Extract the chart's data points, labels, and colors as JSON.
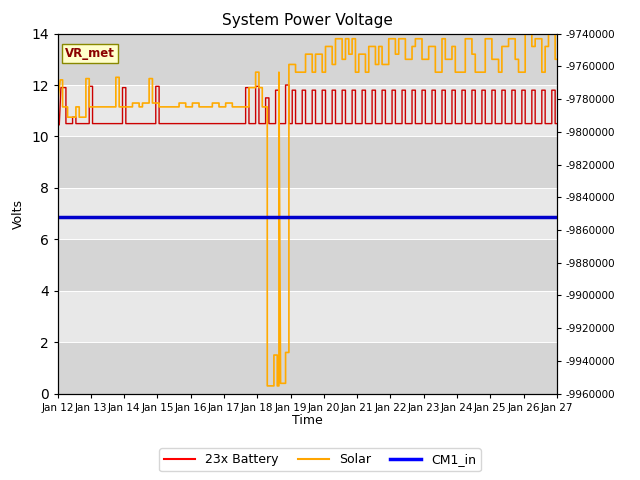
{
  "title": "System Power Voltage",
  "xlabel": "Time",
  "ylabel": "Volts",
  "ylim_left": [
    0,
    14
  ],
  "ylim_right": [
    -9960000,
    -9740000
  ],
  "right_yticks": [
    -9740000,
    -9760000,
    -9780000,
    -9800000,
    -9820000,
    -9840000,
    -9860000,
    -9880000,
    -9900000,
    -9920000,
    -9940000,
    -9960000
  ],
  "bg_color": "#e8e8e8",
  "band_color": "#d0d0d0",
  "annotation_text": "VR_met",
  "legend_labels": [
    "23x Battery",
    "Solar",
    "CM1_in"
  ],
  "legend_colors": [
    "red",
    "orange",
    "blue"
  ],
  "cm1_value": 6.85,
  "battery_color": "#cc0000",
  "solar_color": "#ffaa00",
  "cm1_color": "#0000cc",
  "battery_data": [
    [
      0.0,
      10.45
    ],
    [
      0.05,
      10.45
    ],
    [
      0.1,
      11.9
    ],
    [
      0.25,
      11.9
    ],
    [
      0.25,
      10.5
    ],
    [
      0.45,
      10.5
    ],
    [
      0.45,
      10.75
    ],
    [
      0.55,
      10.75
    ],
    [
      0.55,
      10.5
    ],
    [
      0.85,
      10.5
    ],
    [
      0.85,
      10.5
    ],
    [
      0.95,
      10.5
    ],
    [
      0.95,
      11.95
    ],
    [
      1.05,
      11.95
    ],
    [
      1.05,
      10.5
    ],
    [
      1.15,
      10.5
    ],
    [
      1.15,
      10.5
    ],
    [
      1.35,
      10.5
    ],
    [
      1.35,
      10.5
    ],
    [
      1.55,
      10.5
    ],
    [
      1.55,
      10.5
    ],
    [
      1.75,
      10.5
    ],
    [
      1.75,
      10.5
    ],
    [
      1.95,
      10.5
    ],
    [
      1.95,
      11.9
    ],
    [
      2.05,
      11.9
    ],
    [
      2.05,
      10.5
    ],
    [
      2.25,
      10.5
    ],
    [
      2.25,
      10.5
    ],
    [
      2.45,
      10.5
    ],
    [
      2.45,
      10.5
    ],
    [
      2.55,
      10.5
    ],
    [
      2.55,
      10.5
    ],
    [
      2.85,
      10.5
    ],
    [
      2.85,
      10.5
    ],
    [
      2.95,
      10.5
    ],
    [
      2.95,
      11.95
    ],
    [
      3.05,
      11.95
    ],
    [
      3.05,
      10.5
    ],
    [
      3.25,
      10.5
    ],
    [
      3.25,
      10.5
    ],
    [
      3.45,
      10.5
    ],
    [
      3.45,
      10.5
    ],
    [
      3.65,
      10.5
    ],
    [
      3.65,
      10.5
    ],
    [
      3.85,
      10.5
    ],
    [
      3.85,
      10.5
    ],
    [
      4.05,
      10.5
    ],
    [
      4.05,
      10.5
    ],
    [
      4.25,
      10.5
    ],
    [
      4.25,
      10.5
    ],
    [
      4.45,
      10.5
    ],
    [
      4.45,
      10.5
    ],
    [
      4.65,
      10.5
    ],
    [
      4.65,
      10.5
    ],
    [
      4.85,
      10.5
    ],
    [
      4.85,
      10.5
    ],
    [
      5.05,
      10.5
    ],
    [
      5.05,
      10.5
    ],
    [
      5.25,
      10.5
    ],
    [
      5.25,
      10.5
    ],
    [
      5.45,
      10.5
    ],
    [
      5.45,
      10.5
    ],
    [
      5.65,
      10.5
    ],
    [
      5.65,
      11.9
    ],
    [
      5.75,
      11.9
    ],
    [
      5.75,
      10.5
    ],
    [
      5.85,
      10.5
    ],
    [
      5.85,
      10.5
    ],
    [
      5.95,
      10.5
    ],
    [
      5.95,
      11.95
    ],
    [
      6.05,
      11.95
    ],
    [
      6.05,
      10.5
    ],
    [
      6.25,
      10.5
    ],
    [
      6.25,
      11.5
    ],
    [
      6.35,
      11.5
    ],
    [
      6.35,
      10.5
    ],
    [
      6.55,
      10.5
    ],
    [
      6.55,
      11.8
    ],
    [
      6.65,
      11.8
    ],
    [
      6.65,
      10.5
    ],
    [
      6.85,
      10.5
    ],
    [
      6.85,
      12.0
    ],
    [
      6.95,
      12.0
    ],
    [
      6.95,
      10.5
    ],
    [
      7.05,
      10.5
    ],
    [
      7.05,
      11.8
    ],
    [
      7.15,
      11.8
    ],
    [
      7.15,
      10.5
    ],
    [
      7.35,
      10.5
    ],
    [
      7.35,
      11.8
    ],
    [
      7.45,
      11.8
    ],
    [
      7.45,
      10.5
    ],
    [
      7.65,
      10.5
    ],
    [
      7.65,
      11.8
    ],
    [
      7.75,
      11.8
    ],
    [
      7.75,
      10.5
    ],
    [
      7.95,
      10.5
    ],
    [
      7.95,
      11.8
    ],
    [
      8.05,
      11.8
    ],
    [
      8.05,
      10.5
    ],
    [
      8.25,
      10.5
    ],
    [
      8.25,
      11.8
    ],
    [
      8.35,
      11.8
    ],
    [
      8.35,
      10.5
    ],
    [
      8.55,
      10.5
    ],
    [
      8.55,
      11.8
    ],
    [
      8.65,
      11.8
    ],
    [
      8.65,
      10.5
    ],
    [
      8.85,
      10.5
    ],
    [
      8.85,
      11.8
    ],
    [
      8.95,
      11.8
    ],
    [
      8.95,
      10.5
    ],
    [
      9.15,
      10.5
    ],
    [
      9.15,
      11.8
    ],
    [
      9.25,
      11.8
    ],
    [
      9.25,
      10.5
    ],
    [
      9.45,
      10.5
    ],
    [
      9.45,
      11.8
    ],
    [
      9.55,
      11.8
    ],
    [
      9.55,
      10.5
    ],
    [
      9.75,
      10.5
    ],
    [
      9.75,
      11.8
    ],
    [
      9.85,
      11.8
    ],
    [
      9.85,
      10.5
    ],
    [
      10.05,
      10.5
    ],
    [
      10.05,
      11.8
    ],
    [
      10.15,
      11.8
    ],
    [
      10.15,
      10.5
    ],
    [
      10.35,
      10.5
    ],
    [
      10.35,
      11.8
    ],
    [
      10.45,
      11.8
    ],
    [
      10.45,
      10.5
    ],
    [
      10.65,
      10.5
    ],
    [
      10.65,
      11.8
    ],
    [
      10.75,
      11.8
    ],
    [
      10.75,
      10.5
    ],
    [
      10.95,
      10.5
    ],
    [
      10.95,
      11.8
    ],
    [
      11.05,
      11.8
    ],
    [
      11.05,
      10.5
    ],
    [
      11.25,
      10.5
    ],
    [
      11.25,
      11.8
    ],
    [
      11.35,
      11.8
    ],
    [
      11.35,
      10.5
    ],
    [
      11.55,
      10.5
    ],
    [
      11.55,
      11.8
    ],
    [
      11.65,
      11.8
    ],
    [
      11.65,
      10.5
    ],
    [
      11.85,
      10.5
    ],
    [
      11.85,
      11.8
    ],
    [
      11.95,
      11.8
    ],
    [
      11.95,
      10.5
    ],
    [
      12.15,
      10.5
    ],
    [
      12.15,
      11.8
    ],
    [
      12.25,
      11.8
    ],
    [
      12.25,
      10.5
    ],
    [
      12.45,
      10.5
    ],
    [
      12.45,
      11.8
    ],
    [
      12.55,
      11.8
    ],
    [
      12.55,
      10.5
    ],
    [
      12.75,
      10.5
    ],
    [
      12.75,
      11.8
    ],
    [
      12.85,
      11.8
    ],
    [
      12.85,
      10.5
    ],
    [
      13.05,
      10.5
    ],
    [
      13.05,
      11.8
    ],
    [
      13.15,
      11.8
    ],
    [
      13.15,
      10.5
    ],
    [
      13.35,
      10.5
    ],
    [
      13.35,
      11.8
    ],
    [
      13.45,
      11.8
    ],
    [
      13.45,
      10.5
    ],
    [
      13.65,
      10.5
    ],
    [
      13.65,
      11.8
    ],
    [
      13.75,
      11.8
    ],
    [
      13.75,
      10.5
    ],
    [
      13.95,
      10.5
    ],
    [
      13.95,
      11.8
    ],
    [
      14.05,
      11.8
    ],
    [
      14.05,
      10.5
    ],
    [
      14.25,
      10.5
    ],
    [
      14.25,
      11.8
    ],
    [
      14.35,
      11.8
    ],
    [
      14.35,
      10.5
    ],
    [
      14.55,
      10.5
    ],
    [
      14.55,
      11.8
    ],
    [
      14.65,
      11.8
    ],
    [
      14.65,
      10.5
    ],
    [
      14.85,
      10.5
    ],
    [
      14.85,
      11.8
    ],
    [
      14.95,
      11.8
    ],
    [
      14.95,
      10.5
    ],
    [
      15.0,
      10.5
    ]
  ],
  "solar_data": [
    [
      0.0,
      11.3
    ],
    [
      0.08,
      12.2
    ],
    [
      0.15,
      12.2
    ],
    [
      0.15,
      11.15
    ],
    [
      0.3,
      11.15
    ],
    [
      0.3,
      10.75
    ],
    [
      0.55,
      10.75
    ],
    [
      0.55,
      11.15
    ],
    [
      0.65,
      11.15
    ],
    [
      0.65,
      10.75
    ],
    [
      0.85,
      10.75
    ],
    [
      0.85,
      12.25
    ],
    [
      0.95,
      12.25
    ],
    [
      0.95,
      11.15
    ],
    [
      1.15,
      11.15
    ],
    [
      1.15,
      11.15
    ],
    [
      1.35,
      11.15
    ],
    [
      1.35,
      11.15
    ],
    [
      1.55,
      11.15
    ],
    [
      1.55,
      11.15
    ],
    [
      1.75,
      11.15
    ],
    [
      1.75,
      12.3
    ],
    [
      1.85,
      12.3
    ],
    [
      1.85,
      11.15
    ],
    [
      2.05,
      11.15
    ],
    [
      2.05,
      11.15
    ],
    [
      2.25,
      11.15
    ],
    [
      2.25,
      11.3
    ],
    [
      2.45,
      11.3
    ],
    [
      2.45,
      11.15
    ],
    [
      2.55,
      11.15
    ],
    [
      2.55,
      11.3
    ],
    [
      2.75,
      11.3
    ],
    [
      2.75,
      12.25
    ],
    [
      2.85,
      12.25
    ],
    [
      2.85,
      11.3
    ],
    [
      3.05,
      11.3
    ],
    [
      3.05,
      11.15
    ],
    [
      3.25,
      11.15
    ],
    [
      3.25,
      11.15
    ],
    [
      3.45,
      11.15
    ],
    [
      3.45,
      11.15
    ],
    [
      3.65,
      11.15
    ],
    [
      3.65,
      11.3
    ],
    [
      3.85,
      11.3
    ],
    [
      3.85,
      11.15
    ],
    [
      4.05,
      11.15
    ],
    [
      4.05,
      11.3
    ],
    [
      4.25,
      11.3
    ],
    [
      4.25,
      11.15
    ],
    [
      4.45,
      11.15
    ],
    [
      4.45,
      11.15
    ],
    [
      4.65,
      11.15
    ],
    [
      4.65,
      11.3
    ],
    [
      4.85,
      11.3
    ],
    [
      4.85,
      11.15
    ],
    [
      5.05,
      11.15
    ],
    [
      5.05,
      11.3
    ],
    [
      5.25,
      11.3
    ],
    [
      5.25,
      11.15
    ],
    [
      5.45,
      11.15
    ],
    [
      5.45,
      11.15
    ],
    [
      5.65,
      11.15
    ],
    [
      5.65,
      11.15
    ],
    [
      5.75,
      11.15
    ],
    [
      5.75,
      11.9
    ],
    [
      5.95,
      11.9
    ],
    [
      5.95,
      12.5
    ],
    [
      6.05,
      12.5
    ],
    [
      6.05,
      11.9
    ],
    [
      6.15,
      11.9
    ],
    [
      6.15,
      11.15
    ],
    [
      6.3,
      11.15
    ],
    [
      6.3,
      0.3
    ],
    [
      6.3,
      0.3
    ],
    [
      6.5,
      0.3
    ],
    [
      6.5,
      1.5
    ],
    [
      6.6,
      1.5
    ],
    [
      6.6,
      0.3
    ],
    [
      6.65,
      0.3
    ],
    [
      6.65,
      12.5
    ],
    [
      6.7,
      0.4
    ],
    [
      6.85,
      0.4
    ],
    [
      6.85,
      1.6
    ],
    [
      6.95,
      1.6
    ],
    [
      6.95,
      12.8
    ],
    [
      7.05,
      12.8
    ],
    [
      7.15,
      12.8
    ],
    [
      7.15,
      12.5
    ],
    [
      7.35,
      12.5
    ],
    [
      7.35,
      12.5
    ],
    [
      7.45,
      12.5
    ],
    [
      7.45,
      13.2
    ],
    [
      7.65,
      13.2
    ],
    [
      7.65,
      12.5
    ],
    [
      7.75,
      12.5
    ],
    [
      7.75,
      13.2
    ],
    [
      7.95,
      13.2
    ],
    [
      7.95,
      12.5
    ],
    [
      8.05,
      12.5
    ],
    [
      8.05,
      13.5
    ],
    [
      8.25,
      13.5
    ],
    [
      8.25,
      12.8
    ],
    [
      8.35,
      12.8
    ],
    [
      8.35,
      13.8
    ],
    [
      8.55,
      13.8
    ],
    [
      8.55,
      13.0
    ],
    [
      8.65,
      13.0
    ],
    [
      8.65,
      13.8
    ],
    [
      8.75,
      13.8
    ],
    [
      8.75,
      13.2
    ],
    [
      8.85,
      13.2
    ],
    [
      8.85,
      13.8
    ],
    [
      8.95,
      13.8
    ],
    [
      8.95,
      12.5
    ],
    [
      9.05,
      12.5
    ],
    [
      9.05,
      13.2
    ],
    [
      9.25,
      13.2
    ],
    [
      9.25,
      12.5
    ],
    [
      9.35,
      12.5
    ],
    [
      9.35,
      13.5
    ],
    [
      9.55,
      13.5
    ],
    [
      9.55,
      12.8
    ],
    [
      9.65,
      12.8
    ],
    [
      9.65,
      13.5
    ],
    [
      9.75,
      13.5
    ],
    [
      9.75,
      12.8
    ],
    [
      9.95,
      12.8
    ],
    [
      9.95,
      13.8
    ],
    [
      10.15,
      13.8
    ],
    [
      10.15,
      13.2
    ],
    [
      10.25,
      13.2
    ],
    [
      10.25,
      13.8
    ],
    [
      10.45,
      13.8
    ],
    [
      10.45,
      13.0
    ],
    [
      10.65,
      13.0
    ],
    [
      10.65,
      13.5
    ],
    [
      10.75,
      13.5
    ],
    [
      10.75,
      13.8
    ],
    [
      10.95,
      13.8
    ],
    [
      10.95,
      13.0
    ],
    [
      11.15,
      13.0
    ],
    [
      11.15,
      13.5
    ],
    [
      11.35,
      13.5
    ],
    [
      11.35,
      12.5
    ],
    [
      11.55,
      12.5
    ],
    [
      11.55,
      13.8
    ],
    [
      11.65,
      13.8
    ],
    [
      11.65,
      13.0
    ],
    [
      11.85,
      13.0
    ],
    [
      11.85,
      13.5
    ],
    [
      11.95,
      13.5
    ],
    [
      11.95,
      12.5
    ],
    [
      12.05,
      12.5
    ],
    [
      12.05,
      12.5
    ],
    [
      12.25,
      12.5
    ],
    [
      12.25,
      13.8
    ],
    [
      12.45,
      13.8
    ],
    [
      12.45,
      13.2
    ],
    [
      12.55,
      13.2
    ],
    [
      12.55,
      12.5
    ],
    [
      12.65,
      12.5
    ],
    [
      12.65,
      12.5
    ],
    [
      12.85,
      12.5
    ],
    [
      12.85,
      13.8
    ],
    [
      13.05,
      13.8
    ],
    [
      13.05,
      13.0
    ],
    [
      13.25,
      13.0
    ],
    [
      13.25,
      12.5
    ],
    [
      13.35,
      12.5
    ],
    [
      13.35,
      13.5
    ],
    [
      13.55,
      13.5
    ],
    [
      13.55,
      13.8
    ],
    [
      13.75,
      13.8
    ],
    [
      13.75,
      13.0
    ],
    [
      13.85,
      13.0
    ],
    [
      13.85,
      12.5
    ],
    [
      14.05,
      12.5
    ],
    [
      14.05,
      14.0
    ],
    [
      14.25,
      14.0
    ],
    [
      14.25,
      13.5
    ],
    [
      14.35,
      13.5
    ],
    [
      14.35,
      13.8
    ],
    [
      14.55,
      13.8
    ],
    [
      14.55,
      12.5
    ],
    [
      14.65,
      12.5
    ],
    [
      14.65,
      13.5
    ],
    [
      14.75,
      13.5
    ],
    [
      14.75,
      14.0
    ],
    [
      14.95,
      14.0
    ],
    [
      14.95,
      13.0
    ],
    [
      15.0,
      13.0
    ]
  ],
  "x_tick_positions": [
    0,
    1,
    2,
    3,
    4,
    5,
    6,
    7,
    8,
    9,
    10,
    11,
    12,
    13,
    14,
    15
  ],
  "x_tick_labels": [
    "Jan 12",
    "Jan 13",
    "Jan 14",
    "Jan 15",
    "Jan 16",
    "Jan 17",
    "Jan 18",
    "Jan 19",
    "Jan 20",
    "Jan 21",
    "Jan 22",
    "Jan 23",
    "Jan 24",
    "Jan 25",
    "Jan 26",
    "Jan 27"
  ],
  "yticks_left": [
    0,
    2,
    4,
    6,
    8,
    10,
    12,
    14
  ],
  "band_pairs": [
    [
      0,
      2
    ],
    [
      4,
      6
    ],
    [
      8,
      10
    ],
    [
      12,
      14
    ]
  ],
  "band_color_dark": "#d5d5d5",
  "band_color_light": "#e8e8e8"
}
